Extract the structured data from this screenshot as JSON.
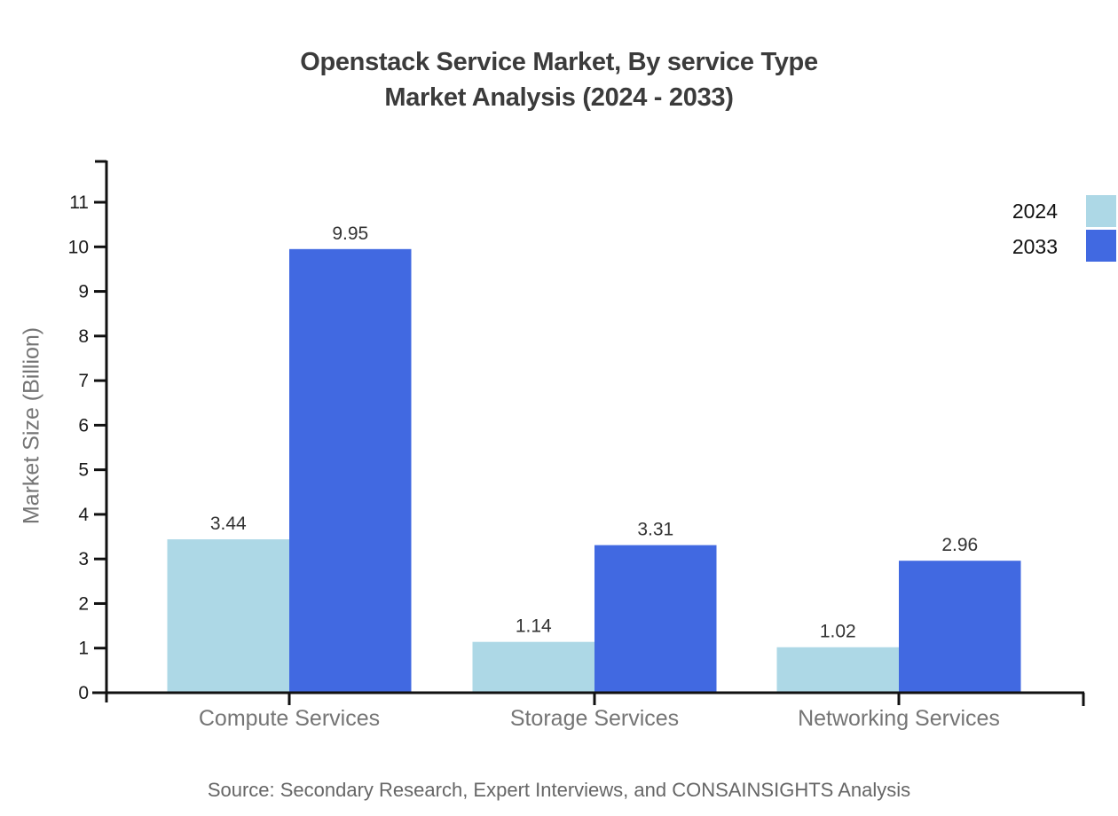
{
  "title": {
    "line1": "Openstack Service Market, By service Type",
    "line2": "Market Analysis (2024 - 2033)"
  },
  "source_note": "Source: Secondary Research, Expert Interviews, and CONSAINSIGHTS Analysis",
  "chart_data": {
    "type": "bar",
    "categories": [
      "Compute Services",
      "Storage Services",
      "Networking Services"
    ],
    "series": [
      {
        "name": "2024",
        "color": "#add8e6",
        "values": [
          3.44,
          1.14,
          1.02
        ]
      },
      {
        "name": "2033",
        "color": "#4169e1",
        "values": [
          9.95,
          3.31,
          2.96
        ]
      }
    ],
    "title": "Openstack Service Market, By service Type Market Analysis (2024 - 2033)",
    "xlabel": "",
    "ylabel": "Market Size (Billion)",
    "ylim": [
      0,
      11
    ],
    "yticks": [
      0,
      1,
      2,
      3,
      4,
      5,
      6,
      7,
      8,
      9,
      10,
      11
    ],
    "grid": false,
    "legend_position": "top-right",
    "value_labels_shown": true
  },
  "colors": {
    "axis": "#111111",
    "tick_label": "#1a1a1a",
    "category_label": "#757575",
    "value_label": "#333333",
    "legend_text": "#111111"
  }
}
